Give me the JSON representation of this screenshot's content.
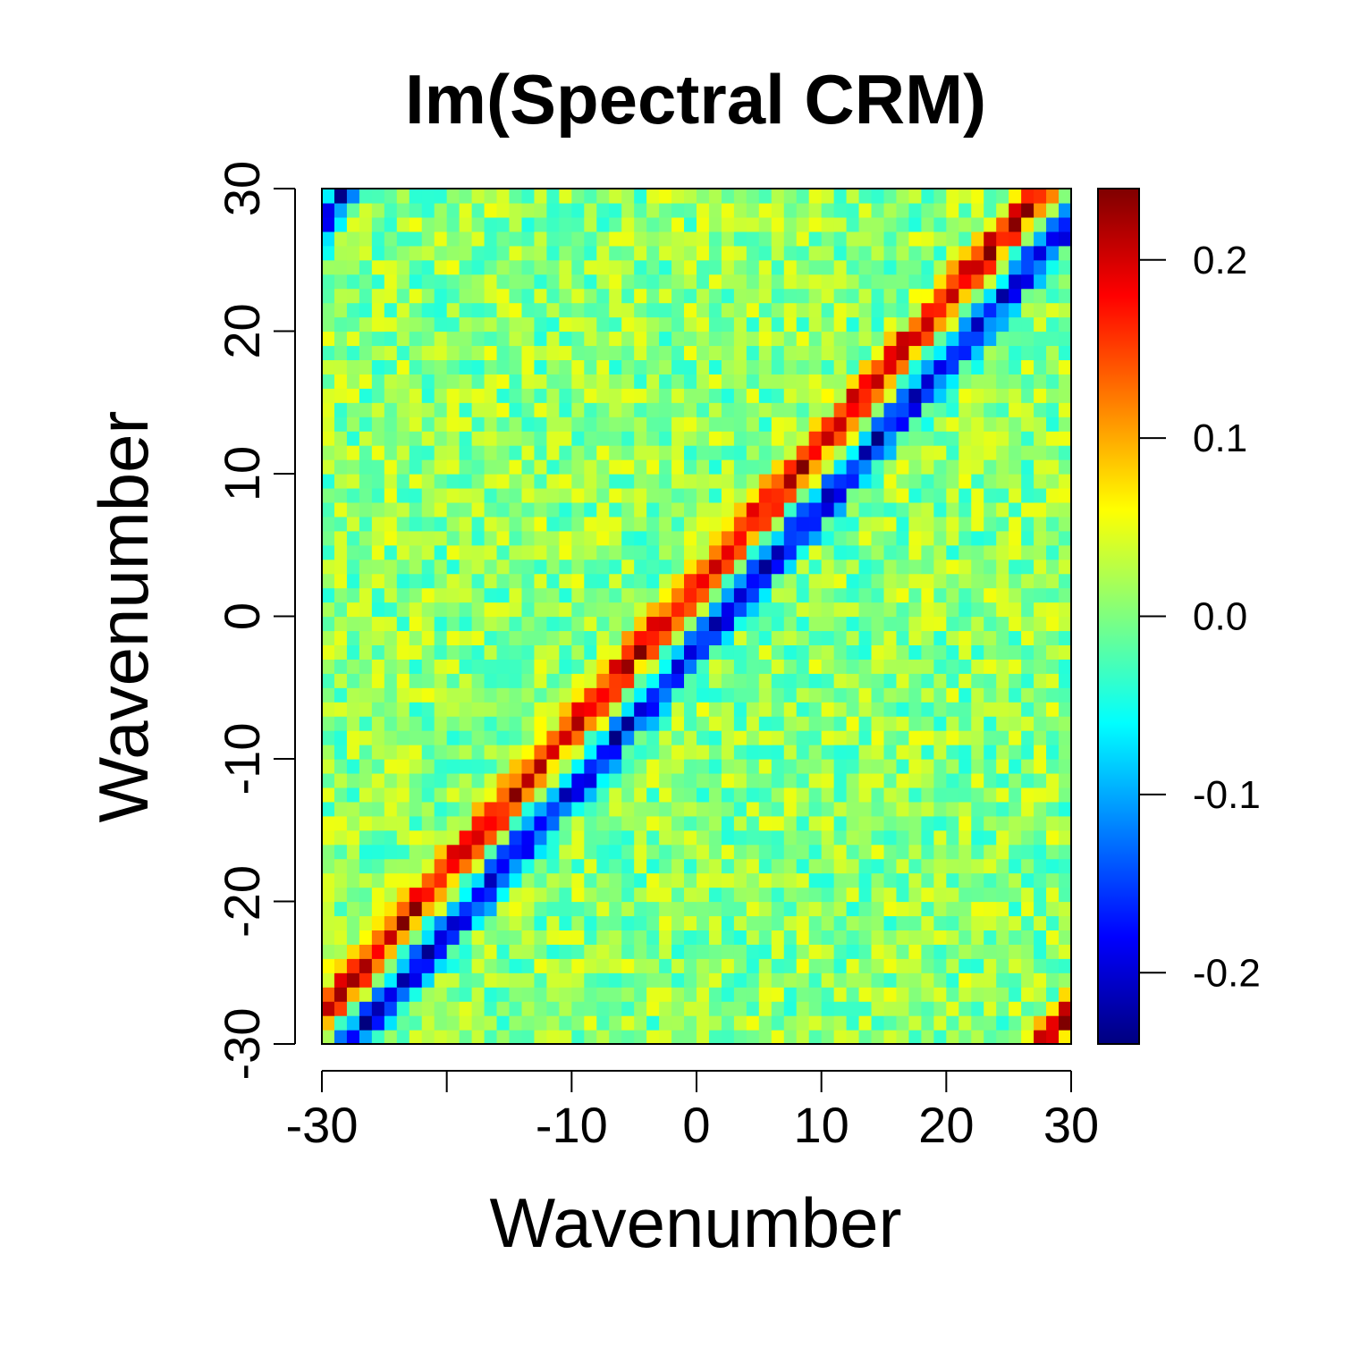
{
  "chart_data": {
    "type": "heatmap",
    "title": "Im(Spectral CRM)",
    "xlabel": "Wavenumber",
    "ylabel": "Wavenumber",
    "x_range": [
      -30,
      30
    ],
    "y_range": [
      -30,
      30
    ],
    "x_ticks": [
      -30,
      -20,
      -10,
      0,
      10,
      20,
      30
    ],
    "x_tick_labels": [
      "-30",
      "",
      "-10",
      "0",
      "10",
      "20",
      "30"
    ],
    "y_ticks": [
      -30,
      -20,
      -10,
      0,
      10,
      20,
      30
    ],
    "y_tick_labels": [
      "-30",
      "-20",
      "-10",
      "0",
      "10",
      "20",
      "30"
    ],
    "grid_n": 60,
    "value_range": [
      -0.24,
      0.24
    ],
    "colorbar": {
      "ticks": [
        -0.2,
        -0.1,
        0.0,
        0.1,
        0.2
      ],
      "tick_labels": [
        "-0.2",
        "-0.1",
        "0.0",
        "0.1",
        "0.2"
      ],
      "colormap": [
        "#00007f",
        "#0000ff",
        "#007fff",
        "#00ffff",
        "#7fff7f",
        "#ffff00",
        "#ff7f00",
        "#ff0000",
        "#7f0000"
      ]
    },
    "structure": {
      "description_note": "positive band just above the main diagonal, negative band just below; values approximate",
      "band_peak_value": 0.2,
      "band_offset": 2.2,
      "corner_positive_upper_right": true,
      "corner_negative_upper_left": true,
      "noise_amplitude": 0.05
    }
  }
}
